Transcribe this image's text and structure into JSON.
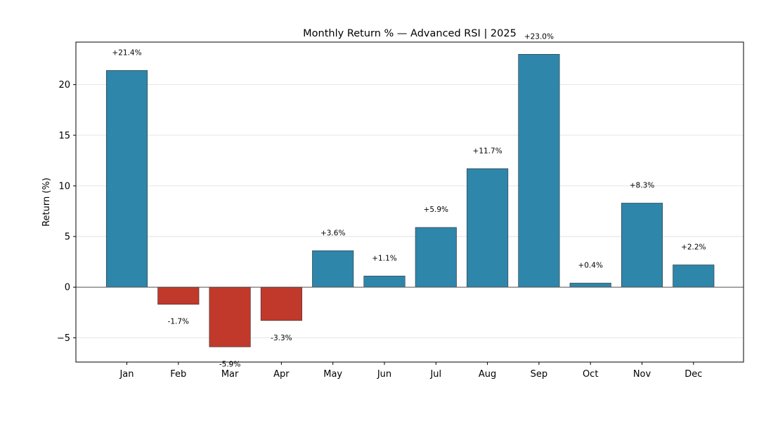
{
  "chart_data": {
    "type": "bar",
    "title": "Monthly Return % — Advanced RSI | 2025",
    "xlabel": "",
    "ylabel": "Return (%)",
    "categories": [
      "Jan",
      "Feb",
      "Mar",
      "Apr",
      "May",
      "Jun",
      "Jul",
      "Aug",
      "Sep",
      "Oct",
      "Nov",
      "Dec"
    ],
    "values": [
      21.4,
      -1.7,
      -5.9,
      -3.3,
      3.6,
      1.1,
      5.9,
      11.7,
      23.0,
      0.4,
      8.3,
      2.2
    ],
    "data_labels": [
      "+21.4%",
      "-1.7%",
      "-5.9%",
      "-3.3%",
      "+3.6%",
      "+1.1%",
      "+5.9%",
      "+11.7%",
      "+23.0%",
      "+0.4%",
      "+8.3%",
      "+2.2%"
    ],
    "ylim": [
      -7.4,
      24.2
    ],
    "yticks": [
      -5,
      0,
      5,
      10,
      15,
      20
    ],
    "ytick_labels": [
      "−5",
      "0",
      "5",
      "10",
      "15",
      "20"
    ],
    "grid": "horizontal",
    "colors": {
      "positive": "#2e86ab",
      "negative": "#c0392b",
      "zero_line": "#555555",
      "grid": "#dddddd"
    }
  }
}
